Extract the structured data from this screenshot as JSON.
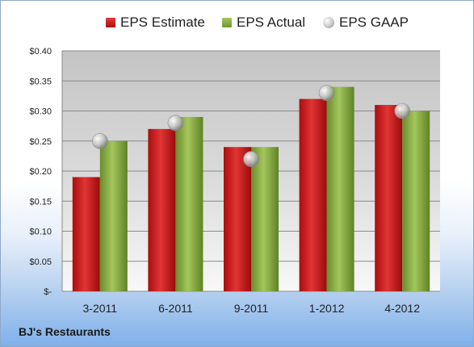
{
  "chart_data": {
    "type": "bar",
    "categories": [
      "3-2011",
      "6-2011",
      "9-2011",
      "1-2012",
      "4-2012"
    ],
    "series": [
      {
        "name": "EPS Estimate",
        "type": "bar",
        "values": [
          0.19,
          0.27,
          0.24,
          0.32,
          0.31
        ],
        "color": "#d42020"
      },
      {
        "name": "EPS Actual",
        "type": "bar",
        "values": [
          0.25,
          0.29,
          0.24,
          0.34,
          0.3
        ],
        "color": "#8db04a"
      },
      {
        "name": "EPS GAAP",
        "type": "scatter",
        "values": [
          0.25,
          0.28,
          0.22,
          0.33,
          0.3
        ],
        "color": "#b0b0b0"
      }
    ],
    "yticks": [
      "$-",
      "$0.05",
      "$0.10",
      "$0.15",
      "$0.20",
      "$0.25",
      "$0.30",
      "$0.35",
      "$0.40"
    ],
    "ylim": [
      0,
      0.4
    ],
    "grid": true,
    "legend_position": "top"
  },
  "footer": {
    "company": "BJ's Restaurants"
  }
}
